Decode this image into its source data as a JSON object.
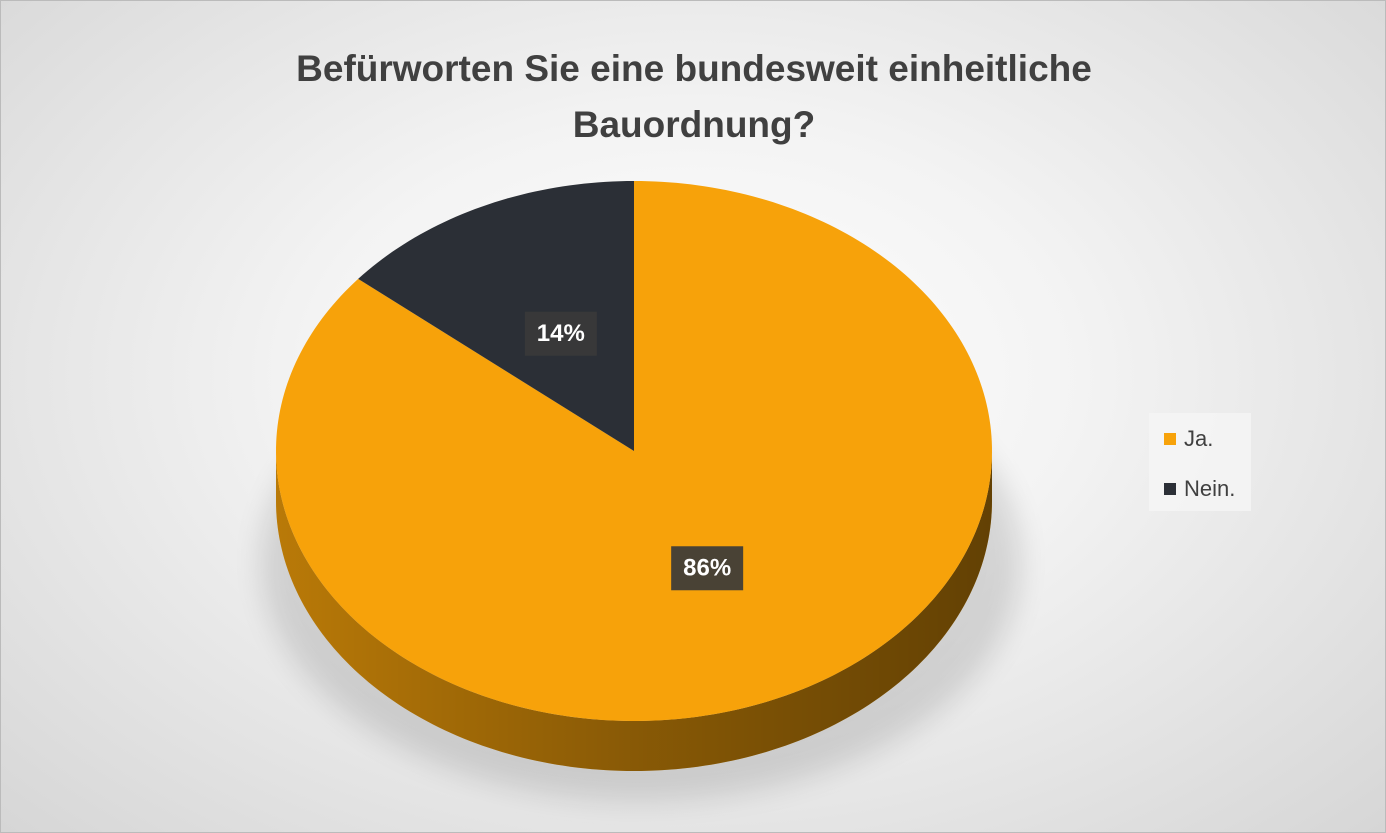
{
  "chart_data": {
    "type": "pie3d",
    "title": "Befürworten Sie eine bundesweit einheitliche Bauordnung?",
    "categories": [
      "Ja.",
      "Nein."
    ],
    "values": [
      86,
      14
    ],
    "value_labels": [
      "86%",
      "14%"
    ],
    "colors": [
      "#f7a20a",
      "#2b2f36"
    ],
    "legend": "right"
  }
}
